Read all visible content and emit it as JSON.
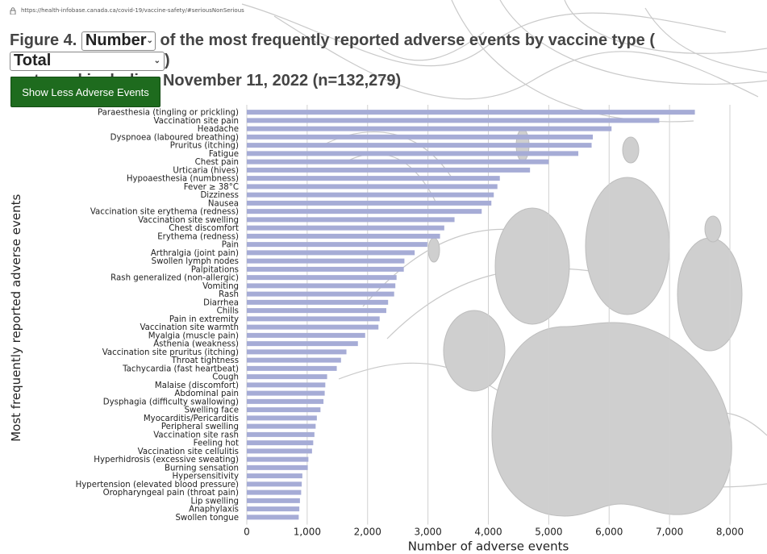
{
  "browser": {
    "url": "https://health-infobase.canada.ca/covid-19/vaccine-safety/#seriousNonSerious"
  },
  "figure": {
    "prefix": "Figure 4.",
    "select_measure": "Number",
    "middle": "of the most frequently reported adverse events by vaccine type (",
    "select_vaccine": "Total",
    "suffix": ")",
    "line2": "up to and including November 11, 2022 (n=132,279)"
  },
  "button": {
    "label": "Show Less Adverse Events"
  },
  "colors": {
    "bar": "#a6acd6",
    "button": "#1e6b1e",
    "grid": "#d0d0d0"
  },
  "icons": {
    "lock": "lock-icon",
    "chevron": "chevron-down-icon"
  },
  "chart_data": {
    "type": "bar",
    "orientation": "horizontal",
    "xlabel": "Number of adverse events",
    "ylabel": "Most frequently reported adverse events",
    "xlim": [
      0,
      8000
    ],
    "xticks": [
      0,
      1000,
      2000,
      3000,
      4000,
      5000,
      6000,
      7000,
      8000
    ],
    "xtick_labels": [
      "0",
      "1,000",
      "2,000",
      "3,000",
      "4,000",
      "5,000",
      "6,000",
      "7,000",
      "8,000"
    ],
    "grid": "vertical",
    "categories": [
      "Paraesthesia (tingling or prickling)",
      "Vaccination site pain",
      "Headache",
      "Dyspnoea (laboured breathing)",
      "Pruritus (itching)",
      "Fatigue",
      "Chest pain",
      "Urticaria (hives)",
      "Hypoaesthesia (numbness)",
      "Fever ≥ 38°C",
      "Dizziness",
      "Nausea",
      "Vaccination site erythema (redness)",
      "Vaccination site swelling",
      "Chest discomfort",
      "Erythema (redness)",
      "Pain",
      "Arthralgia (joint pain)",
      "Swollen lymph nodes",
      "Palpitations",
      "Rash generalized (non-allergic)",
      "Vomiting",
      "Rash",
      "Diarrhea",
      "Chills",
      "Pain in extremity",
      "Vaccination site warmth",
      "Myalgia (muscle pain)",
      "Asthenia (weakness)",
      "Vaccination site pruritus (itching)",
      "Throat tightness",
      "Tachycardia (fast heartbeat)",
      "Cough",
      "Malaise (discomfort)",
      "Abdominal pain",
      "Dysphagia (difficulty swallowing)",
      "Swelling face",
      "Myocarditis/Pericarditis",
      "Peripheral swelling",
      "Vaccination site rash",
      "Feeling hot",
      "Vaccination site cellulitis",
      "Hyperhidrosis (excessive sweating)",
      "Burning sensation",
      "Hypersensitivity",
      "Hypertension (elevated blood pressure)",
      "Oropharyngeal pain (throat pain)",
      "Lip swelling",
      "Anaphylaxis",
      "Swollen tongue"
    ],
    "values": [
      7420,
      6830,
      6040,
      5730,
      5710,
      5490,
      5000,
      4690,
      4190,
      4150,
      4090,
      4050,
      3890,
      3440,
      3270,
      3200,
      2990,
      2780,
      2610,
      2600,
      2480,
      2460,
      2440,
      2340,
      2310,
      2200,
      2180,
      1960,
      1840,
      1650,
      1560,
      1490,
      1330,
      1300,
      1290,
      1270,
      1220,
      1160,
      1140,
      1120,
      1100,
      1080,
      1020,
      1010,
      920,
      910,
      900,
      880,
      870,
      860
    ]
  }
}
